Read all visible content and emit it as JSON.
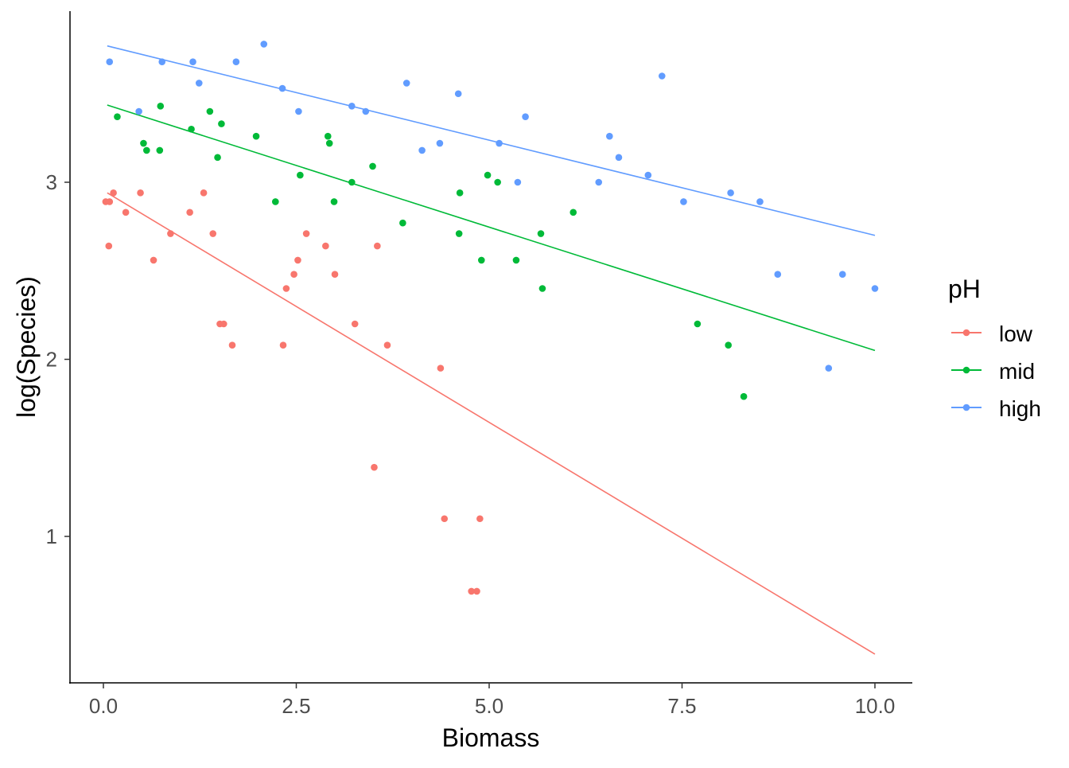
{
  "chart_data": {
    "type": "scatter",
    "title": "",
    "xlabel": "Biomass",
    "ylabel": "log(Species)",
    "xlim": [
      -0.2,
      10.4
    ],
    "ylim": [
      0.23,
      3.92
    ],
    "x_ticks": [
      0,
      2.5,
      5,
      7.5,
      10
    ],
    "x_tick_labels": [
      "0.0",
      "2.5",
      "5.0",
      "7.5",
      "10.0"
    ],
    "y_ticks": [
      1,
      2,
      3
    ],
    "y_tick_labels": [
      "1",
      "2",
      "3"
    ],
    "grid": false,
    "legend": {
      "title": "pH",
      "position": "right"
    },
    "series": [
      {
        "name": "low",
        "color": "#F8766D",
        "fit": {
          "x": [
            0.05,
            10.0
          ],
          "y": [
            2.94,
            0.335
          ]
        },
        "points": [
          [
            0.03,
            2.89
          ],
          [
            0.08,
            2.89
          ],
          [
            0.13,
            2.94
          ],
          [
            0.07,
            2.64
          ],
          [
            0.29,
            2.83
          ],
          [
            0.48,
            2.94
          ],
          [
            0.65,
            2.56
          ],
          [
            0.87,
            2.71
          ],
          [
            1.12,
            2.83
          ],
          [
            1.3,
            2.94
          ],
          [
            1.42,
            2.71
          ],
          [
            1.51,
            2.2
          ],
          [
            1.56,
            2.2
          ],
          [
            1.67,
            2.08
          ],
          [
            2.33,
            2.08
          ],
          [
            2.37,
            2.4
          ],
          [
            2.47,
            2.48
          ],
          [
            2.52,
            2.56
          ],
          [
            2.63,
            2.71
          ],
          [
            2.88,
            2.64
          ],
          [
            3.0,
            2.48
          ],
          [
            3.26,
            2.2
          ],
          [
            3.55,
            2.64
          ],
          [
            3.68,
            2.08
          ],
          [
            3.51,
            1.39
          ],
          [
            4.37,
            1.95
          ],
          [
            4.42,
            1.1
          ],
          [
            4.77,
            0.69
          ],
          [
            4.84,
            0.69
          ],
          [
            4.88,
            1.1
          ]
        ]
      },
      {
        "name": "mid",
        "color": "#00BA38",
        "fit": {
          "x": [
            0.05,
            10.0
          ],
          "y": [
            3.436,
            2.05
          ]
        },
        "points": [
          [
            0.18,
            3.37
          ],
          [
            0.52,
            3.22
          ],
          [
            0.56,
            3.18
          ],
          [
            0.73,
            3.18
          ],
          [
            0.74,
            3.43
          ],
          [
            1.14,
            3.3
          ],
          [
            1.38,
            3.4
          ],
          [
            1.48,
            3.14
          ],
          [
            1.53,
            3.33
          ],
          [
            1.98,
            3.26
          ],
          [
            2.23,
            2.89
          ],
          [
            2.55,
            3.04
          ],
          [
            2.91,
            3.26
          ],
          [
            2.93,
            3.22
          ],
          [
            2.99,
            2.89
          ],
          [
            3.22,
            3.0
          ],
          [
            3.49,
            3.09
          ],
          [
            3.88,
            2.77
          ],
          [
            4.62,
            2.94
          ],
          [
            4.61,
            2.71
          ],
          [
            4.9,
            2.56
          ],
          [
            4.98,
            3.04
          ],
          [
            5.11,
            3.0
          ],
          [
            5.35,
            2.56
          ],
          [
            5.67,
            2.71
          ],
          [
            5.69,
            2.4
          ],
          [
            6.09,
            2.83
          ],
          [
            7.7,
            2.2
          ],
          [
            8.1,
            2.08
          ],
          [
            8.3,
            1.79
          ]
        ]
      },
      {
        "name": "high",
        "color": "#619CFF",
        "fit": {
          "x": [
            0.05,
            10.0
          ],
          "y": [
            3.77,
            2.7
          ]
        },
        "points": [
          [
            0.08,
            3.68
          ],
          [
            0.46,
            3.4
          ],
          [
            0.76,
            3.68
          ],
          [
            1.16,
            3.68
          ],
          [
            1.24,
            3.56
          ],
          [
            1.72,
            3.68
          ],
          [
            2.08,
            3.78
          ],
          [
            2.32,
            3.53
          ],
          [
            2.53,
            3.4
          ],
          [
            3.22,
            3.43
          ],
          [
            3.4,
            3.4
          ],
          [
            3.93,
            3.56
          ],
          [
            4.13,
            3.18
          ],
          [
            4.36,
            3.22
          ],
          [
            4.6,
            3.5
          ],
          [
            5.13,
            3.22
          ],
          [
            5.37,
            3.0
          ],
          [
            5.47,
            3.37
          ],
          [
            6.42,
            3.0
          ],
          [
            6.56,
            3.26
          ],
          [
            6.68,
            3.14
          ],
          [
            7.06,
            3.04
          ],
          [
            7.24,
            3.6
          ],
          [
            7.52,
            2.89
          ],
          [
            8.13,
            2.94
          ],
          [
            8.51,
            2.89
          ],
          [
            8.74,
            2.48
          ],
          [
            9.4,
            1.95
          ],
          [
            9.58,
            2.48
          ],
          [
            10.0,
            2.4
          ]
        ]
      }
    ]
  }
}
